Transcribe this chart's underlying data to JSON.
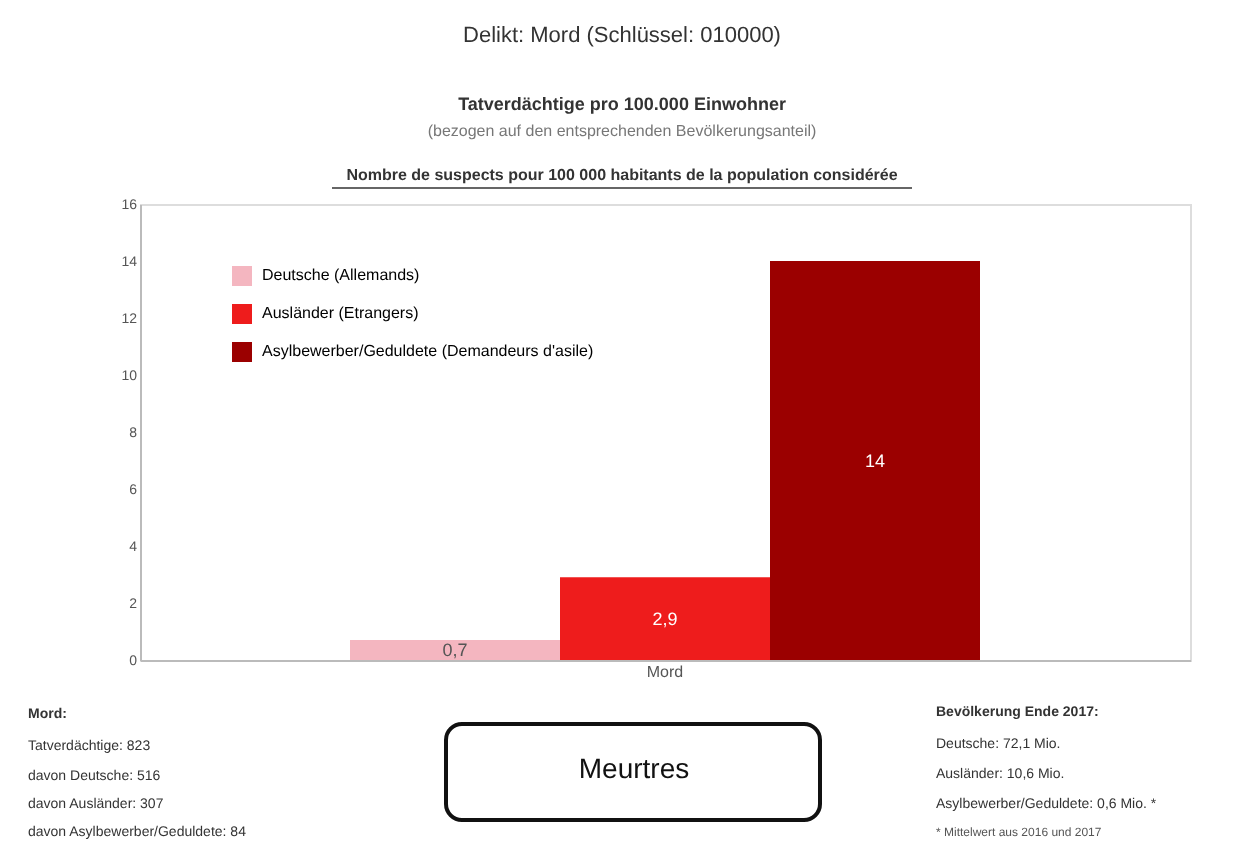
{
  "chart_data": {
    "type": "bar",
    "title": "Delikt: Mord (Schlüssel: 010000)",
    "subtitle": "Tatverdächtige pro 100.000 Einwohner",
    "categories": [
      "Mord"
    ],
    "series": [
      {
        "name": "Deutsche (Allemands)",
        "color": "#f4b6c0",
        "values": [
          0.7
        ],
        "value_labels": [
          "0,7"
        ]
      },
      {
        "name": "Ausländer (Etrangers)",
        "color": "#ee1c1c",
        "values": [
          2.9
        ],
        "value_labels": [
          "2,9"
        ]
      },
      {
        "name": "Asylbewerber/Geduldete (Demandeurs d'asile)",
        "color": "#9b0000",
        "values": [
          14
        ],
        "value_labels": [
          "14"
        ]
      }
    ],
    "ylim": [
      0,
      16
    ],
    "yticks": [
      0,
      2,
      4,
      6,
      8,
      10,
      12,
      14,
      16
    ],
    "grid": false,
    "legend": "top left",
    "annotations": [
      "(bezogen auf den entsprechenden Bevölkerungsanteil)",
      "Nombre de suspects pour 100 000 habitants de la population considérée",
      "Mord:",
      "Tatverdächtige: 823",
      "davon Deutsche: 516",
      "davon Ausländer: 307",
      "davon Asylbewerber/Geduldete: 84",
      "Meurtres",
      "Bevölkerung Ende 2017:",
      "Deutsche: 72,1 Mio.",
      "Ausländer: 10,6 Mio.",
      "Asylbewerber/Geduldete: 0,6 Mio. *",
      "* Mittelwert aus 2016 und 2017"
    ]
  }
}
